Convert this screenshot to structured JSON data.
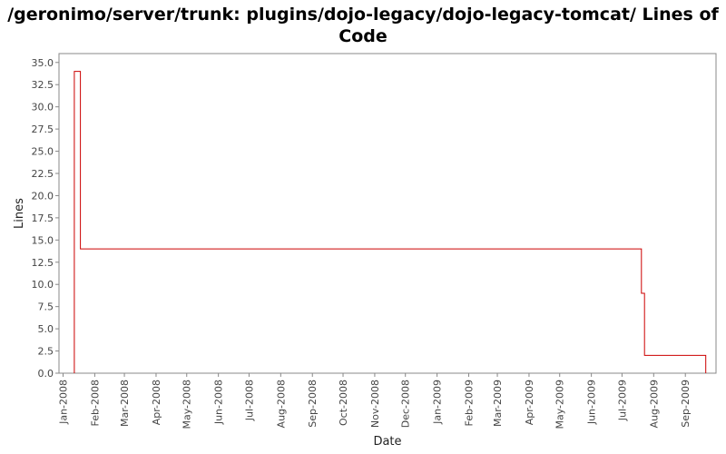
{
  "chart_data": {
    "type": "line",
    "title": "/geronimo/server/trunk: plugins/dojo-legacy/dojo-legacy-tomcat/ Lines of Code",
    "xlabel": "Date",
    "ylabel": "Lines",
    "ylim": [
      0,
      36
    ],
    "xlim": [
      "2007-12-28",
      "2009-10-01"
    ],
    "grid": false,
    "legend": "none",
    "line_color": "#cc0000",
    "y_ticks": [
      "0.0",
      "2.5",
      "5.0",
      "7.5",
      "10.0",
      "12.5",
      "15.0",
      "17.5",
      "20.0",
      "22.5",
      "25.0",
      "27.5",
      "30.0",
      "32.5",
      "35.0"
    ],
    "x_ticks": [
      {
        "date": "2008-01-01",
        "label": "Jan-2008"
      },
      {
        "date": "2008-02-01",
        "label": "Feb-2008"
      },
      {
        "date": "2008-03-01",
        "label": "Mar-2008"
      },
      {
        "date": "2008-04-01",
        "label": "Apr-2008"
      },
      {
        "date": "2008-05-01",
        "label": "May-2008"
      },
      {
        "date": "2008-06-01",
        "label": "Jun-2008"
      },
      {
        "date": "2008-07-01",
        "label": "Jul-2008"
      },
      {
        "date": "2008-08-01",
        "label": "Aug-2008"
      },
      {
        "date": "2008-09-01",
        "label": "Sep-2008"
      },
      {
        "date": "2008-10-01",
        "label": "Oct-2008"
      },
      {
        "date": "2008-11-01",
        "label": "Nov-2008"
      },
      {
        "date": "2008-12-01",
        "label": "Dec-2008"
      },
      {
        "date": "2009-01-01",
        "label": "Jan-2009"
      },
      {
        "date": "2009-02-01",
        "label": "Feb-2009"
      },
      {
        "date": "2009-03-01",
        "label": "Mar-2009"
      },
      {
        "date": "2009-04-01",
        "label": "Apr-2009"
      },
      {
        "date": "2009-05-01",
        "label": "May-2009"
      },
      {
        "date": "2009-06-01",
        "label": "Jun-2009"
      },
      {
        "date": "2009-07-01",
        "label": "Jul-2009"
      },
      {
        "date": "2009-08-01",
        "label": "Aug-2009"
      },
      {
        "date": "2009-09-01",
        "label": "Sep-2009"
      }
    ],
    "series": [
      {
        "points": [
          {
            "x": "2008-01-12",
            "y": 0
          },
          {
            "x": "2008-01-12",
            "y": 34
          },
          {
            "x": "2008-01-18",
            "y": 34
          },
          {
            "x": "2008-01-18",
            "y": 14
          },
          {
            "x": "2009-07-20",
            "y": 14
          },
          {
            "x": "2009-07-20",
            "y": 9
          },
          {
            "x": "2009-07-23",
            "y": 9
          },
          {
            "x": "2009-07-23",
            "y": 2
          },
          {
            "x": "2009-09-21",
            "y": 2
          },
          {
            "x": "2009-09-21",
            "y": 0
          }
        ]
      }
    ]
  }
}
